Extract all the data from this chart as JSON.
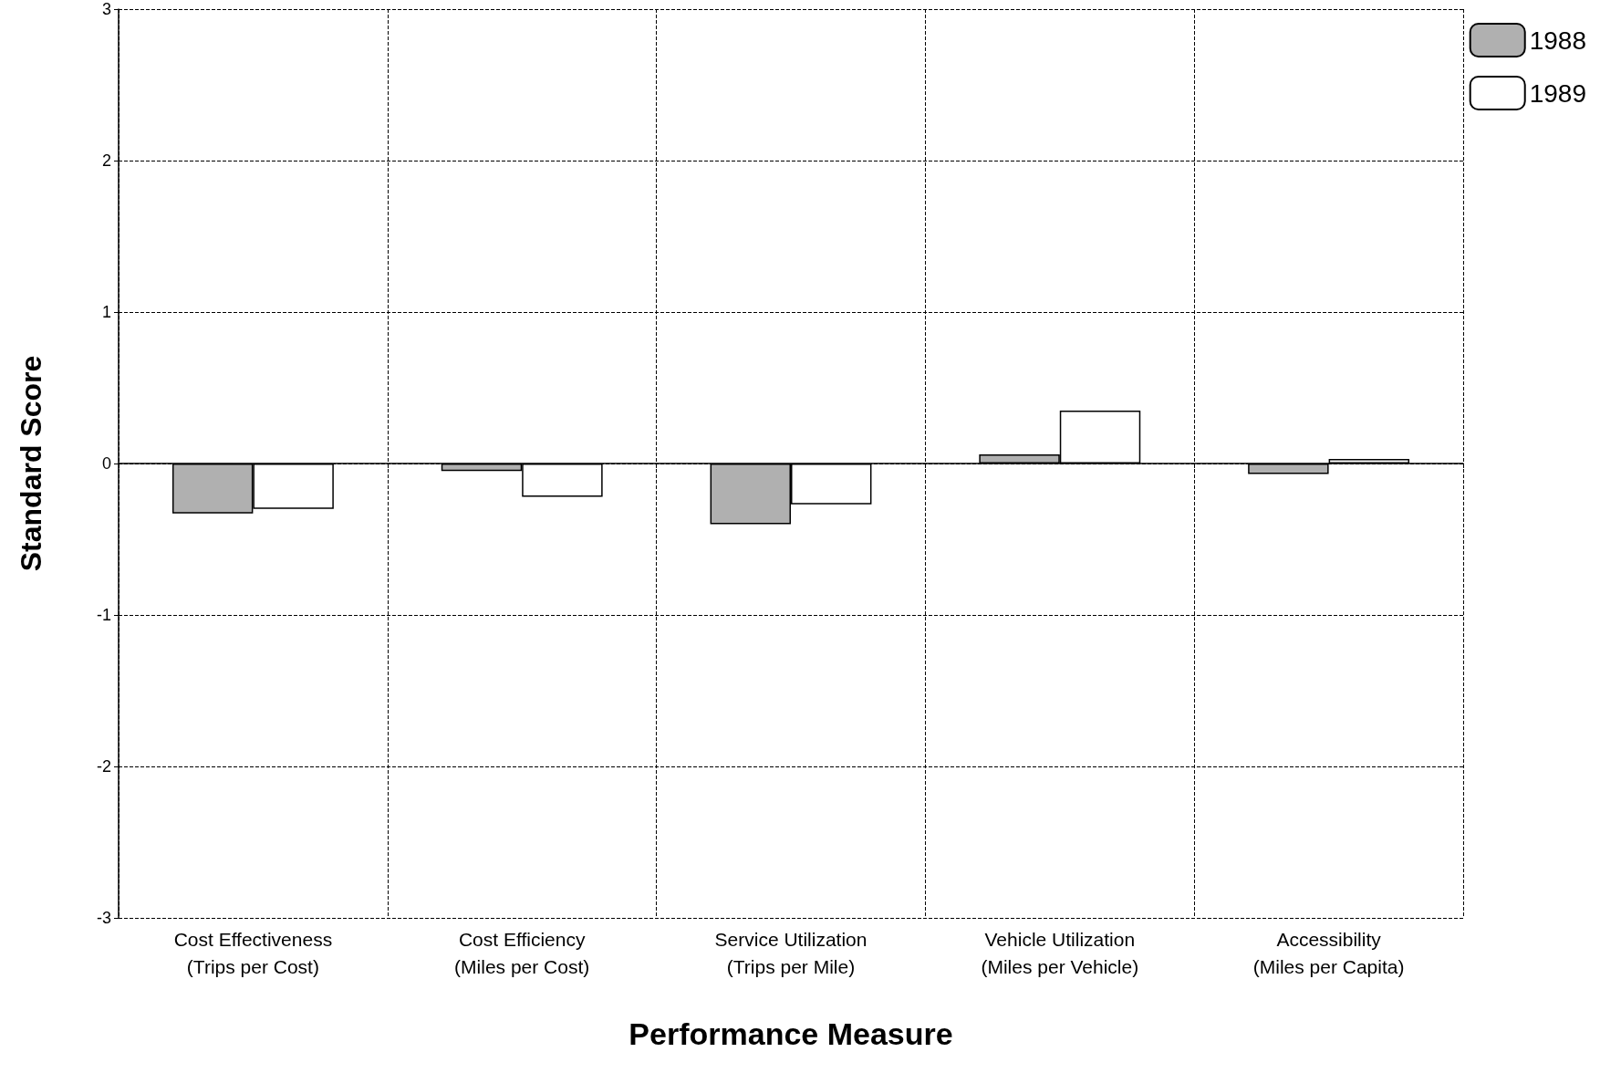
{
  "chart_data": {
    "type": "bar",
    "xlabel": "Performance Measure",
    "ylabel": "Standard Score",
    "categories": [
      "Cost Effectiveness\n(Trips per Cost)",
      "Cost Efficiency\n(Miles per Cost)",
      "Service Utilization\n(Trips per Mile)",
      "Vehicle Utilization\n(Miles per Vehicle)",
      "Accessibility\n(Miles per Capita)"
    ],
    "series": [
      {
        "name": "1988",
        "color": "#b0b0b0",
        "values": [
          -0.33,
          -0.05,
          -0.4,
          0.06,
          -0.07
        ]
      },
      {
        "name": "1989",
        "color": "#ffffff",
        "values": [
          -0.3,
          -0.22,
          -0.27,
          0.35,
          0.03
        ]
      }
    ],
    "ylim": [
      -3,
      3
    ],
    "yticks": [
      -3,
      -2,
      -1,
      0,
      1,
      2,
      3
    ],
    "grid": true,
    "legend": "top right"
  }
}
